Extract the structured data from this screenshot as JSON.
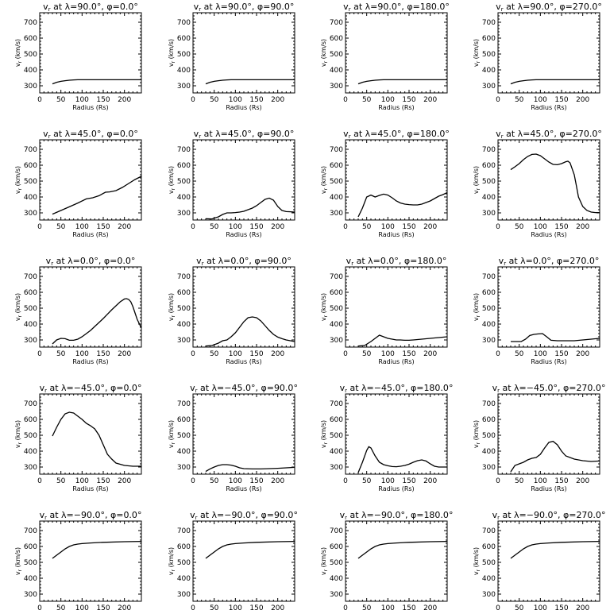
{
  "chart_data": [
    {
      "type": "line",
      "title": "v_r at λ=90.0°, φ=0.0°",
      "title_parts": {
        "lambda": "90.0",
        "phi": "0.0"
      },
      "xlabel": "Radius (Rs)",
      "ylabel": "v_r (km/s)",
      "xlim": [
        0,
        240
      ],
      "ylim": [
        255,
        760
      ],
      "x_ticks": [
        0,
        50,
        100,
        150,
        200
      ],
      "y_ticks": [
        300,
        400,
        500,
        600,
        700
      ],
      "x": [
        30,
        40,
        50,
        60,
        70,
        80,
        90,
        100,
        150,
        200,
        240
      ],
      "y": [
        312,
        322,
        328,
        332,
        335,
        337,
        338,
        338,
        338,
        338,
        338
      ]
    },
    {
      "type": "line",
      "title": "v_r at λ=90.0°, φ=90.0°",
      "title_parts": {
        "lambda": "90.0",
        "phi": "90.0"
      },
      "xlabel": "Radius (Rs)",
      "ylabel": "v_r (km/s)",
      "xlim": [
        0,
        240
      ],
      "ylim": [
        255,
        760
      ],
      "x_ticks": [
        0,
        50,
        100,
        150,
        200
      ],
      "y_ticks": [
        300,
        400,
        500,
        600,
        700
      ],
      "x": [
        30,
        40,
        50,
        60,
        70,
        80,
        90,
        100,
        150,
        200,
        240
      ],
      "y": [
        312,
        322,
        328,
        332,
        335,
        337,
        338,
        338,
        338,
        338,
        338
      ]
    },
    {
      "type": "line",
      "title": "v_r at λ=90.0°, φ=180.0°",
      "title_parts": {
        "lambda": "90.0",
        "phi": "180.0"
      },
      "xlabel": "Radius (Rs)",
      "ylabel": "v_r (km/s)",
      "xlim": [
        0,
        240
      ],
      "ylim": [
        255,
        760
      ],
      "x_ticks": [
        0,
        50,
        100,
        150,
        200
      ],
      "y_ticks": [
        300,
        400,
        500,
        600,
        700
      ],
      "x": [
        30,
        40,
        50,
        60,
        70,
        80,
        90,
        100,
        150,
        200,
        240
      ],
      "y": [
        312,
        322,
        328,
        332,
        335,
        337,
        338,
        338,
        338,
        338,
        338
      ]
    },
    {
      "type": "line",
      "title": "v_r at λ=90.0°, φ=270.0°",
      "title_parts": {
        "lambda": "90.0",
        "phi": "270.0"
      },
      "xlabel": "Radius (Rs)",
      "ylabel": "v_r (km/s)",
      "xlim": [
        0,
        240
      ],
      "ylim": [
        255,
        760
      ],
      "x_ticks": [
        0,
        50,
        100,
        150,
        200
      ],
      "y_ticks": [
        300,
        400,
        500,
        600,
        700
      ],
      "x": [
        30,
        40,
        50,
        60,
        70,
        80,
        90,
        100,
        150,
        200,
        240
      ],
      "y": [
        312,
        322,
        328,
        332,
        335,
        337,
        338,
        338,
        338,
        338,
        338
      ]
    },
    {
      "type": "line",
      "title": "v_r at λ=45.0°, φ=0.0°",
      "title_parts": {
        "lambda": "45.0",
        "phi": "0.0"
      },
      "xlabel": "Radius (Rs)",
      "ylabel": "v_r (km/s)",
      "xlim": [
        0,
        240
      ],
      "ylim": [
        255,
        760
      ],
      "x_ticks": [
        0,
        50,
        100,
        150,
        200
      ],
      "y_ticks": [
        300,
        400,
        500,
        600,
        700
      ],
      "x": [
        30,
        50,
        70,
        90,
        110,
        125,
        140,
        155,
        165,
        180,
        195,
        210,
        225,
        240
      ],
      "y": [
        292,
        315,
        338,
        362,
        388,
        395,
        408,
        430,
        432,
        440,
        460,
        485,
        510,
        530
      ]
    },
    {
      "type": "line",
      "title": "v_r at λ=45.0°, φ=90.0°",
      "title_parts": {
        "lambda": "45.0",
        "phi": "90.0"
      },
      "xlabel": "Radius (Rs)",
      "ylabel": "v_r (km/s)",
      "xlim": [
        0,
        240
      ],
      "ylim": [
        255,
        760
      ],
      "x_ticks": [
        0,
        50,
        100,
        150,
        200
      ],
      "y_ticks": [
        300,
        400,
        500,
        600,
        700
      ],
      "x": [
        30,
        45,
        60,
        70,
        80,
        90,
        100,
        110,
        120,
        130,
        140,
        150,
        160,
        170,
        180,
        190,
        200,
        210,
        220,
        230,
        240
      ],
      "y": [
        263,
        262,
        275,
        290,
        300,
        300,
        302,
        305,
        310,
        320,
        330,
        345,
        365,
        385,
        393,
        380,
        340,
        315,
        308,
        307,
        305
      ]
    },
    {
      "type": "line",
      "title": "v_r at λ=45.0°, φ=180.0°",
      "title_parts": {
        "lambda": "45.0",
        "phi": "180.0"
      },
      "xlabel": "Radius (Rs)",
      "ylabel": "v_r (km/s)",
      "xlim": [
        0,
        240
      ],
      "ylim": [
        255,
        760
      ],
      "x_ticks": [
        0,
        50,
        100,
        150,
        200
      ],
      "y_ticks": [
        300,
        400,
        500,
        600,
        700
      ],
      "x": [
        30,
        40,
        50,
        60,
        70,
        80,
        90,
        100,
        110,
        120,
        130,
        140,
        150,
        160,
        170,
        180,
        190,
        200,
        210,
        220,
        230,
        240
      ],
      "y": [
        275,
        330,
        400,
        412,
        400,
        410,
        418,
        412,
        395,
        375,
        362,
        355,
        352,
        350,
        350,
        355,
        365,
        375,
        390,
        405,
        415,
        428
      ]
    },
    {
      "type": "line",
      "title": "v_r at λ=45.0°, φ=270.0°",
      "title_parts": {
        "lambda": "45.0",
        "phi": "270.0"
      },
      "xlabel": "Radius (Rs)",
      "ylabel": "v_r (km/s)",
      "xlim": [
        0,
        240
      ],
      "ylim": [
        255,
        760
      ],
      "x_ticks": [
        0,
        50,
        100,
        150,
        200
      ],
      "y_ticks": [
        300,
        400,
        500,
        600,
        700
      ],
      "x": [
        30,
        40,
        50,
        60,
        70,
        80,
        90,
        100,
        110,
        120,
        130,
        140,
        150,
        160,
        165,
        170,
        180,
        185,
        190,
        200,
        210,
        220,
        230,
        240
      ],
      "y": [
        572,
        590,
        610,
        635,
        655,
        668,
        670,
        660,
        640,
        620,
        605,
        603,
        610,
        622,
        625,
        615,
        540,
        470,
        400,
        340,
        315,
        305,
        302,
        302
      ]
    },
    {
      "type": "line",
      "title": "v_r at λ=0.0°, φ=0.0°",
      "title_parts": {
        "lambda": "0.0",
        "phi": "0.0"
      },
      "xlabel": "Radius (Rs)",
      "ylabel": "v_r (km/s)",
      "xlim": [
        0,
        240
      ],
      "ylim": [
        255,
        760
      ],
      "x_ticks": [
        0,
        50,
        100,
        150,
        200
      ],
      "y_ticks": [
        300,
        400,
        500,
        600,
        700
      ],
      "x": [
        30,
        40,
        50,
        60,
        70,
        80,
        90,
        100,
        110,
        120,
        130,
        140,
        150,
        160,
        170,
        180,
        190,
        200,
        205,
        210,
        215,
        220,
        225,
        230,
        240
      ],
      "y": [
        275,
        300,
        310,
        308,
        298,
        298,
        305,
        320,
        340,
        360,
        385,
        410,
        435,
        462,
        490,
        515,
        540,
        558,
        560,
        555,
        540,
        510,
        470,
        430,
        375
      ]
    },
    {
      "type": "line",
      "title": "v_r at λ=0.0°, φ=90.0°",
      "title_parts": {
        "lambda": "0.0",
        "phi": "90.0"
      },
      "xlabel": "Radius (Rs)",
      "ylabel": "v_r (km/s)",
      "xlim": [
        0,
        240
      ],
      "ylim": [
        255,
        760
      ],
      "x_ticks": [
        0,
        50,
        100,
        150,
        200
      ],
      "y_ticks": [
        300,
        400,
        500,
        600,
        700
      ],
      "x": [
        30,
        45,
        60,
        70,
        80,
        90,
        100,
        110,
        120,
        130,
        140,
        150,
        160,
        170,
        180,
        190,
        200,
        210,
        220,
        230,
        240
      ],
      "y": [
        262,
        265,
        280,
        295,
        300,
        320,
        345,
        380,
        415,
        440,
        445,
        440,
        420,
        390,
        360,
        335,
        318,
        308,
        300,
        295,
        290
      ]
    },
    {
      "type": "line",
      "title": "v_r at λ=0.0°, φ=180.0°",
      "title_parts": {
        "lambda": "0.0",
        "phi": "180.0"
      },
      "xlabel": "Radius (Rs)",
      "ylabel": "v_r (km/s)",
      "xlim": [
        0,
        240
      ],
      "ylim": [
        255,
        760
      ],
      "x_ticks": [
        0,
        50,
        100,
        150,
        200
      ],
      "y_ticks": [
        300,
        400,
        500,
        600,
        700
      ],
      "x": [
        30,
        45,
        60,
        70,
        80,
        90,
        100,
        110,
        120,
        130,
        140,
        150,
        160,
        180,
        200,
        220,
        240
      ],
      "y": [
        262,
        265,
        290,
        310,
        330,
        320,
        310,
        305,
        300,
        300,
        298,
        298,
        300,
        305,
        310,
        315,
        320
      ]
    },
    {
      "type": "line",
      "title": "v_r at λ=0.0°, φ=270.0°",
      "title_parts": {
        "lambda": "0.0",
        "phi": "270.0"
      },
      "xlabel": "Radius (Rs)",
      "ylabel": "v_r (km/s)",
      "xlim": [
        0,
        240
      ],
      "ylim": [
        255,
        760
      ],
      "x_ticks": [
        0,
        50,
        100,
        150,
        200
      ],
      "y_ticks": [
        300,
        400,
        500,
        600,
        700
      ],
      "x": [
        30,
        45,
        55,
        65,
        75,
        85,
        95,
        105,
        115,
        125,
        140,
        160,
        180,
        200,
        220,
        240
      ],
      "y": [
        290,
        290,
        290,
        305,
        328,
        335,
        338,
        340,
        320,
        298,
        295,
        295,
        295,
        300,
        305,
        310
      ]
    },
    {
      "type": "line",
      "title": "v_r at λ=−45.0°, φ=0.0°",
      "title_parts": {
        "lambda": "−45.0",
        "phi": "0.0"
      },
      "xlabel": "Radius (Rs)",
      "ylabel": "v_r (km/s)",
      "xlim": [
        0,
        240
      ],
      "ylim": [
        255,
        760
      ],
      "x_ticks": [
        0,
        50,
        100,
        150,
        200
      ],
      "y_ticks": [
        300,
        400,
        500,
        600,
        700
      ],
      "x": [
        30,
        40,
        50,
        60,
        70,
        80,
        90,
        100,
        110,
        120,
        130,
        140,
        150,
        160,
        170,
        180,
        200,
        220,
        240
      ],
      "y": [
        495,
        550,
        600,
        635,
        645,
        640,
        620,
        600,
        575,
        560,
        540,
        500,
        440,
        380,
        350,
        325,
        310,
        305,
        305
      ]
    },
    {
      "type": "line",
      "title": "v_r at λ=−45.0°, φ=90.0°",
      "title_parts": {
        "lambda": "−45.0",
        "phi": "90.0"
      },
      "xlabel": "Radius (Rs)",
      "ylabel": "v_r (km/s)",
      "xlim": [
        0,
        240
      ],
      "ylim": [
        255,
        760
      ],
      "x_ticks": [
        0,
        50,
        100,
        150,
        200
      ],
      "y_ticks": [
        300,
        400,
        500,
        600,
        700
      ],
      "x": [
        30,
        40,
        50,
        60,
        70,
        80,
        90,
        100,
        110,
        120,
        140,
        160,
        180,
        200,
        220,
        240
      ],
      "y": [
        272,
        288,
        300,
        310,
        315,
        315,
        312,
        305,
        295,
        290,
        288,
        288,
        290,
        292,
        295,
        298
      ]
    },
    {
      "type": "line",
      "title": "v_r at λ=−45.0°, φ=180.0°",
      "title_parts": {
        "lambda": "−45.0",
        "phi": "180.0"
      },
      "xlabel": "Radius (Rs)",
      "ylabel": "v_r (km/s)",
      "xlim": [
        0,
        240
      ],
      "ylim": [
        255,
        760
      ],
      "x_ticks": [
        0,
        50,
        100,
        150,
        200
      ],
      "y_ticks": [
        300,
        400,
        500,
        600,
        700
      ],
      "x": [
        30,
        40,
        50,
        55,
        60,
        70,
        80,
        90,
        100,
        110,
        120,
        130,
        140,
        150,
        160,
        170,
        180,
        190,
        200,
        210,
        220,
        230,
        240
      ],
      "y": [
        265,
        330,
        405,
        428,
        420,
        370,
        330,
        315,
        308,
        303,
        302,
        305,
        310,
        318,
        330,
        340,
        345,
        338,
        320,
        305,
        300,
        300,
        300
      ]
    },
    {
      "type": "line",
      "title": "v_r at λ=−45.0°, φ=270.0°",
      "title_parts": {
        "lambda": "−45.0",
        "phi": "270.0"
      },
      "xlabel": "Radius (Rs)",
      "ylabel": "v_r (km/s)",
      "xlim": [
        0,
        240
      ],
      "ylim": [
        255,
        760
      ],
      "x_ticks": [
        0,
        50,
        100,
        150,
        200
      ],
      "y_ticks": [
        300,
        400,
        500,
        600,
        700
      ],
      "x": [
        30,
        40,
        50,
        60,
        70,
        80,
        90,
        100,
        110,
        120,
        130,
        140,
        150,
        160,
        180,
        200,
        220,
        240
      ],
      "y": [
        270,
        310,
        320,
        330,
        345,
        355,
        360,
        380,
        420,
        455,
        462,
        440,
        400,
        370,
        350,
        340,
        335,
        338
      ]
    },
    {
      "type": "line",
      "title": "v_r at λ=−90.0°, φ=0.0°",
      "title_parts": {
        "lambda": "−90.0",
        "phi": "0.0"
      },
      "xlabel": "Radius (Rs)",
      "ylabel": "v_r (km/s)",
      "xlim": [
        0,
        240
      ],
      "ylim": [
        255,
        760
      ],
      "x_ticks": [
        0,
        50,
        100,
        150,
        200
      ],
      "y_ticks": [
        300,
        400,
        500,
        600,
        700
      ],
      "x": [
        30,
        40,
        50,
        60,
        70,
        80,
        90,
        100,
        120,
        150,
        200,
        240
      ],
      "y": [
        525,
        545,
        565,
        585,
        600,
        610,
        615,
        618,
        622,
        626,
        630,
        632
      ]
    },
    {
      "type": "line",
      "title": "v_r at λ=−90.0°, φ=90.0°",
      "title_parts": {
        "lambda": "−90.0",
        "phi": "90.0"
      },
      "xlabel": "Radius (Rs)",
      "ylabel": "v_r (km/s)",
      "xlim": [
        0,
        240
      ],
      "ylim": [
        255,
        760
      ],
      "x_ticks": [
        0,
        50,
        100,
        150,
        200
      ],
      "y_ticks": [
        300,
        400,
        500,
        600,
        700
      ],
      "x": [
        30,
        40,
        50,
        60,
        70,
        80,
        90,
        100,
        120,
        150,
        200,
        240
      ],
      "y": [
        525,
        545,
        565,
        585,
        600,
        610,
        615,
        618,
        622,
        626,
        630,
        632
      ]
    },
    {
      "type": "line",
      "title": "v_r at λ=−90.0°, φ=180.0°",
      "title_parts": {
        "lambda": "−90.0",
        "phi": "180.0"
      },
      "xlabel": "Radius (Rs)",
      "ylabel": "v_r (km/s)",
      "xlim": [
        0,
        240
      ],
      "ylim": [
        255,
        760
      ],
      "x_ticks": [
        0,
        50,
        100,
        150,
        200
      ],
      "y_ticks": [
        300,
        400,
        500,
        600,
        700
      ],
      "x": [
        30,
        40,
        50,
        60,
        70,
        80,
        90,
        100,
        120,
        150,
        200,
        240
      ],
      "y": [
        525,
        545,
        565,
        585,
        600,
        610,
        615,
        618,
        622,
        626,
        630,
        632
      ]
    },
    {
      "type": "line",
      "title": "v_r at λ=−90.0°, φ=270.0°",
      "title_parts": {
        "lambda": "−90.0",
        "phi": "270.0"
      },
      "xlabel": "Radius (Rs)",
      "ylabel": "v_r (km/s)",
      "xlim": [
        0,
        240
      ],
      "ylim": [
        255,
        760
      ],
      "x_ticks": [
        0,
        50,
        100,
        150,
        200
      ],
      "y_ticks": [
        300,
        400,
        500,
        600,
        700
      ],
      "x": [
        30,
        40,
        50,
        60,
        70,
        80,
        90,
        100,
        120,
        150,
        200,
        240
      ],
      "y": [
        525,
        545,
        565,
        585,
        600,
        610,
        615,
        618,
        622,
        626,
        630,
        632
      ]
    }
  ]
}
